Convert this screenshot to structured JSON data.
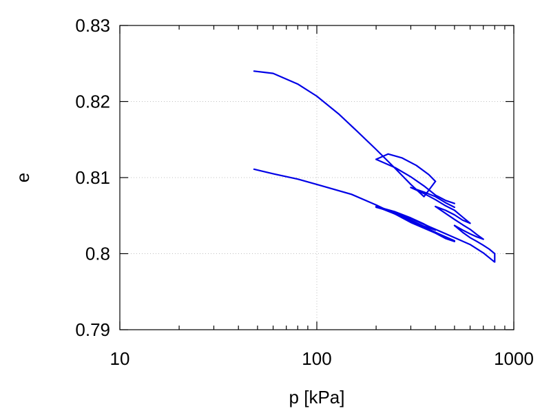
{
  "chart_data": {
    "type": "line",
    "title": "",
    "xlabel": "p [kPa]",
    "ylabel": "e",
    "xscale": "log",
    "xlim": [
      10,
      1000
    ],
    "ylim": [
      0.79,
      0.83
    ],
    "xticks": [
      10,
      100,
      1000
    ],
    "xtick_labels": [
      "10",
      "100",
      "1000"
    ],
    "yticks": [
      0.79,
      0.8,
      0.81,
      0.82,
      0.83
    ],
    "ytick_labels": [
      "0.79",
      "0.8",
      "0.81",
      "0.82",
      "0.83"
    ],
    "grid": true,
    "legend": "none",
    "series_color": "#0000e6",
    "series": [
      {
        "x": [
          48,
          60,
          80,
          100,
          130,
          160,
          200,
          250,
          300,
          350,
          400
        ],
        "y": [
          0.824,
          0.8237,
          0.8223,
          0.8207,
          0.8183,
          0.8161,
          0.8137,
          0.8112,
          0.8091,
          0.8075,
          0.8095
        ]
      },
      {
        "x": [
          400,
          370,
          320,
          270,
          230,
          200
        ],
        "y": [
          0.8095,
          0.8104,
          0.8116,
          0.8126,
          0.8131,
          0.8124
        ]
      },
      {
        "x": [
          200,
          250,
          300,
          350,
          400,
          450,
          500
        ],
        "y": [
          0.8124,
          0.8113,
          0.8101,
          0.8089,
          0.8077,
          0.807,
          0.8066
        ]
      },
      {
        "x": [
          500,
          450,
          400,
          350,
          300
        ],
        "y": [
          0.8061,
          0.8067,
          0.8075,
          0.8081,
          0.8087
        ]
      },
      {
        "x": [
          300,
          350,
          400,
          450,
          500,
          550,
          600
        ],
        "y": [
          0.8087,
          0.8079,
          0.8071,
          0.8063,
          0.8057,
          0.8048,
          0.804
        ]
      },
      {
        "x": [
          600,
          550,
          500,
          450,
          400
        ],
        "y": [
          0.804,
          0.8044,
          0.8051,
          0.8057,
          0.8062
        ]
      },
      {
        "x": [
          400,
          450,
          500,
          550,
          600,
          650,
          700
        ],
        "y": [
          0.8062,
          0.8053,
          0.8045,
          0.8038,
          0.8032,
          0.8025,
          0.8019
        ]
      },
      {
        "x": [
          700,
          650,
          600,
          550,
          500
        ],
        "y": [
          0.8019,
          0.8022,
          0.8026,
          0.8031,
          0.8037
        ]
      },
      {
        "x": [
          500,
          550,
          600,
          650,
          700,
          750,
          800
        ],
        "y": [
          0.8037,
          0.8028,
          0.8021,
          0.8016,
          0.8011,
          0.8006,
          0.8
        ]
      },
      {
        "x": [
          800,
          800,
          790
        ],
        "y": [
          0.8,
          0.7989,
          0.799
        ]
      },
      {
        "x": [
          790,
          700,
          600,
          500,
          400,
          300,
          250,
          200
        ],
        "y": [
          0.799,
          0.8001,
          0.8012,
          0.8021,
          0.8032,
          0.8046,
          0.8054,
          0.8061
        ]
      },
      {
        "x": [
          200,
          250,
          300,
          350,
          400
        ],
        "y": [
          0.8062,
          0.8055,
          0.8047,
          0.8039,
          0.8031
        ]
      },
      {
        "x": [
          400,
          350,
          300,
          250,
          200
        ],
        "y": [
          0.8031,
          0.8036,
          0.8044,
          0.8054,
          0.8062
        ]
      },
      {
        "x": [
          200,
          250,
          300,
          400,
          500
        ],
        "y": [
          0.8062,
          0.8052,
          0.8043,
          0.8028,
          0.8017
        ]
      },
      {
        "x": [
          500,
          450,
          400,
          300,
          250,
          200,
          150,
          100,
          80,
          60,
          48
        ],
        "y": [
          0.8016,
          0.802,
          0.8027,
          0.8041,
          0.8052,
          0.8064,
          0.8078,
          0.8091,
          0.8098,
          0.8105,
          0.8111
        ]
      }
    ]
  }
}
